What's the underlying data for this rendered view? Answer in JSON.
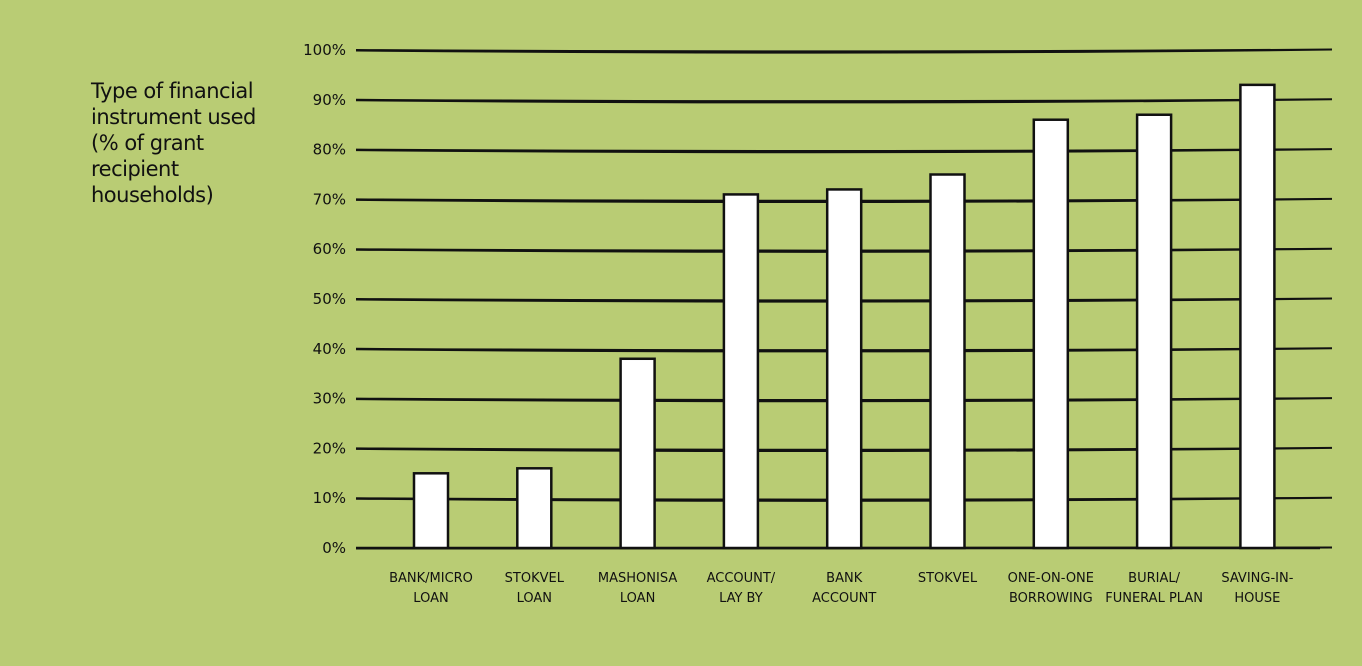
{
  "colors": {
    "background": "#b9cc74",
    "gridline": "#111111",
    "bar_fill": "#ffffff",
    "bar_stroke": "#111111",
    "text": "#111111"
  },
  "chart_data": {
    "type": "bar",
    "title": "Type of financial\ninstrument used\n(% of grant\nrecipient\nhouseholds)",
    "xlabel": "",
    "ylabel": "",
    "categories": [
      [
        "BANK/MICRO",
        "LOAN"
      ],
      [
        "STOKVEL",
        "LOAN"
      ],
      [
        "MASHONISA",
        "LOAN"
      ],
      [
        "ACCOUNT/",
        "LAY BY"
      ],
      [
        "BANK",
        "ACCOUNT"
      ],
      [
        "STOKVEL"
      ],
      [
        "ONE-ON-ONE",
        "BORROWING"
      ],
      [
        "BURIAL/",
        "FUNERAL PLAN"
      ],
      [
        "SAVING-IN-",
        "HOUSE"
      ]
    ],
    "values": [
      15,
      16,
      38,
      71,
      72,
      75,
      86,
      87,
      93
    ],
    "yticks": [
      "0%",
      "10%",
      "20%",
      "30%",
      "40%",
      "50%",
      "60%",
      "70%",
      "80%",
      "90%",
      "100%"
    ],
    "ylim": [
      0,
      100
    ],
    "grid": true,
    "legend": "none"
  }
}
